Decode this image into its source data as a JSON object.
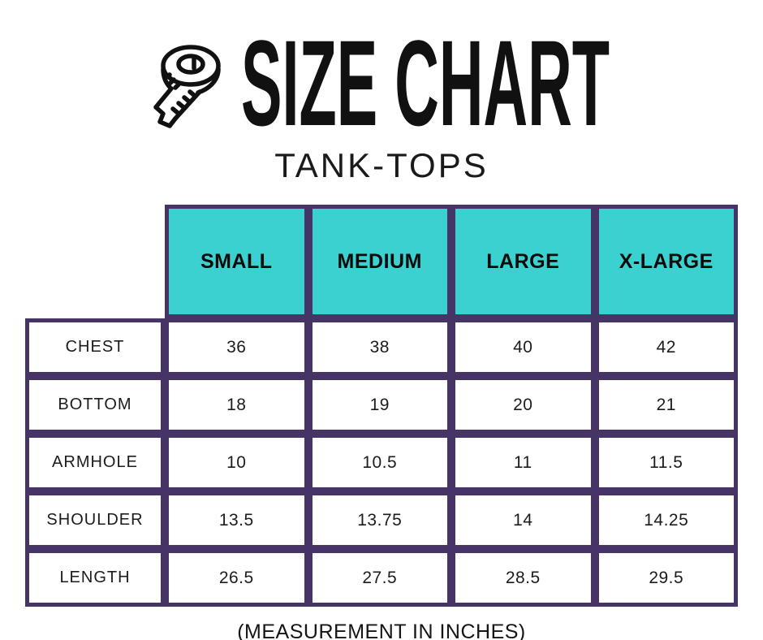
{
  "header": {
    "icon": "measuring-tape-icon",
    "title": "SIZE CHART",
    "subtitle": "TANK-TOPS"
  },
  "table": {
    "columns": [
      "SMALL",
      "MEDIUM",
      "LARGE",
      "X-LARGE"
    ],
    "rows": [
      {
        "label": "CHEST",
        "values": [
          "36",
          "38",
          "40",
          "42"
        ]
      },
      {
        "label": "BOTTOM",
        "values": [
          "18",
          "19",
          "20",
          "21"
        ]
      },
      {
        "label": "ARMHOLE",
        "values": [
          "10",
          "10.5",
          "11",
          "11.5"
        ]
      },
      {
        "label": "SHOULDER",
        "values": [
          "13.5",
          "13.75",
          "14",
          "14.25"
        ]
      },
      {
        "label": "LENGTH",
        "values": [
          "26.5",
          "27.5",
          "28.5",
          "29.5"
        ]
      }
    ]
  },
  "footer": {
    "note": "(MEASUREMENT IN INCHES)"
  },
  "colors": {
    "accent_teal": "#3ad1d0",
    "border_purple": "#463467",
    "text": "#111111"
  },
  "chart_data": {
    "type": "table",
    "title": "SIZE CHART",
    "subtitle": "TANK-TOPS",
    "columns": [
      "",
      "SMALL",
      "MEDIUM",
      "LARGE",
      "X-LARGE"
    ],
    "rows": [
      [
        "CHEST",
        36,
        38,
        40,
        42
      ],
      [
        "BOTTOM",
        18,
        19,
        20,
        21
      ],
      [
        "ARMHOLE",
        10,
        10.5,
        11,
        11.5
      ],
      [
        "SHOULDER",
        13.5,
        13.75,
        14,
        14.25
      ],
      [
        "LENGTH",
        26.5,
        27.5,
        28.5,
        29.5
      ]
    ],
    "note": "(MEASUREMENT IN INCHES)"
  }
}
